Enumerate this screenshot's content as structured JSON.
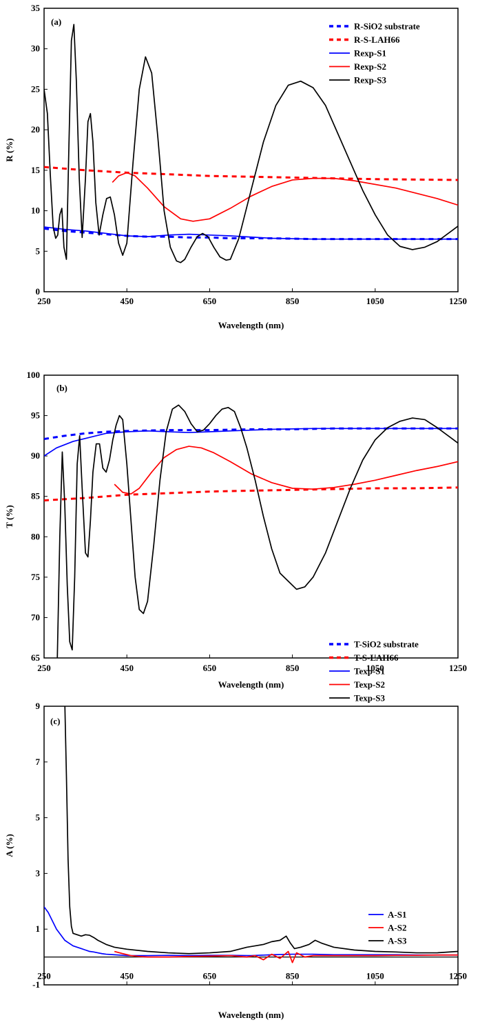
{
  "chart_data": [
    {
      "type": "line",
      "panel_label": "(a)",
      "xlabel": "Wavelength (nm)",
      "ylabel": "R (%)",
      "xlim": [
        250,
        1250
      ],
      "ylim": [
        0,
        35
      ],
      "xticks": [
        250,
        450,
        650,
        850,
        1050,
        1250
      ],
      "yticks": [
        0,
        5,
        10,
        15,
        20,
        25,
        30,
        35
      ],
      "grid": false,
      "legend_position": "top-right",
      "series": [
        {
          "name": "R-SiO2 substrate",
          "color": "#0000ff",
          "dash": true,
          "x": [
            250,
            300,
            350,
            400,
            450,
            500,
            550,
            600,
            650,
            700,
            800,
            900,
            1000,
            1100,
            1250
          ],
          "y": [
            7.8,
            7.5,
            7.3,
            7.1,
            6.9,
            6.8,
            6.8,
            6.7,
            6.7,
            6.6,
            6.6,
            6.5,
            6.5,
            6.5,
            6.5
          ]
        },
        {
          "name": "R-S-LAH66",
          "color": "#ff0000",
          "dash": true,
          "x": [
            250,
            350,
            450,
            550,
            650,
            750,
            850,
            950,
            1050,
            1150,
            1250
          ],
          "y": [
            15.4,
            15.0,
            14.7,
            14.5,
            14.3,
            14.2,
            14.1,
            14.0,
            13.9,
            13.85,
            13.8
          ]
        },
        {
          "name": "Rexp-S1",
          "color": "#0000ff",
          "dash": false,
          "x": [
            250,
            300,
            350,
            400,
            450,
            500,
            550,
            600,
            650,
            700,
            800,
            900,
            1000,
            1100,
            1250
          ],
          "y": [
            8.0,
            7.7,
            7.5,
            7.2,
            6.9,
            6.8,
            7.0,
            7.1,
            7.0,
            6.9,
            6.6,
            6.5,
            6.5,
            6.5,
            6.5
          ]
        },
        {
          "name": "Rexp-S2",
          "color": "#ff0000",
          "dash": false,
          "x": [
            415,
            430,
            450,
            470,
            500,
            540,
            580,
            610,
            650,
            700,
            750,
            800,
            850,
            900,
            950,
            1000,
            1100,
            1200,
            1250
          ],
          "y": [
            13.5,
            14.3,
            14.7,
            14.3,
            12.8,
            10.5,
            9.0,
            8.7,
            9.0,
            10.3,
            11.8,
            13.0,
            13.8,
            14.0,
            14.0,
            13.7,
            12.8,
            11.5,
            10.7
          ]
        },
        {
          "name": "Rexp-S3",
          "color": "#000000",
          "dash": false,
          "x": [
            250,
            258,
            265,
            272,
            278,
            283,
            288,
            293,
            298,
            304,
            310,
            316,
            322,
            328,
            335,
            342,
            350,
            356,
            362,
            368,
            375,
            383,
            392,
            401,
            410,
            420,
            430,
            440,
            450,
            465,
            480,
            495,
            510,
            525,
            540,
            555,
            570,
            580,
            590,
            605,
            620,
            633,
            646,
            660,
            675,
            690,
            700,
            720,
            750,
            780,
            810,
            840,
            870,
            900,
            930,
            960,
            990,
            1020,
            1050,
            1080,
            1110,
            1140,
            1170,
            1200,
            1250
          ],
          "y": [
            25.0,
            22.0,
            14.5,
            8.0,
            6.6,
            7.0,
            9.5,
            10.3,
            5.5,
            4.0,
            18.0,
            31.0,
            33.0,
            26.0,
            14.0,
            6.7,
            14.0,
            21.0,
            22.0,
            18.5,
            11.0,
            7.0,
            9.5,
            11.5,
            11.7,
            9.5,
            6.0,
            4.5,
            6.0,
            16.0,
            25.0,
            29.0,
            27.0,
            19.0,
            10.0,
            5.5,
            3.8,
            3.6,
            4.0,
            5.5,
            6.8,
            7.2,
            6.8,
            5.5,
            4.3,
            3.9,
            4.0,
            6.5,
            12.5,
            18.5,
            23.0,
            25.5,
            26.0,
            25.2,
            23.0,
            19.5,
            16.0,
            12.5,
            9.5,
            7.0,
            5.6,
            5.2,
            5.5,
            6.2,
            8.1
          ]
        }
      ]
    },
    {
      "type": "line",
      "panel_label": "(b)",
      "xlabel": "Wavelength (nm)",
      "ylabel": "T (%)",
      "xlim": [
        250,
        1250
      ],
      "ylim": [
        65,
        100
      ],
      "xticks": [
        250,
        450,
        650,
        850,
        1050,
        1250
      ],
      "yticks": [
        65,
        70,
        75,
        80,
        85,
        90,
        95,
        100
      ],
      "grid": false,
      "legend_position": "bottom-right",
      "series": [
        {
          "name": "T-SiO2 substrate",
          "color": "#0000ff",
          "dash": true,
          "x": [
            250,
            300,
            350,
            400,
            450,
            550,
            650,
            750,
            850,
            950,
            1050,
            1150,
            1250
          ],
          "y": [
            92.1,
            92.5,
            92.8,
            93.0,
            93.1,
            93.2,
            93.2,
            93.3,
            93.3,
            93.4,
            93.4,
            93.4,
            93.4
          ]
        },
        {
          "name": "T-S-LAH66",
          "color": "#ff0000",
          "dash": true,
          "x": [
            250,
            350,
            450,
            550,
            650,
            750,
            850,
            950,
            1050,
            1150,
            1250
          ],
          "y": [
            84.5,
            84.8,
            85.2,
            85.4,
            85.6,
            85.7,
            85.8,
            85.9,
            86.0,
            86.0,
            86.1
          ]
        },
        {
          "name": "Texp-S1",
          "color": "#0000ff",
          "dash": false,
          "x": [
            250,
            280,
            320,
            360,
            400,
            450,
            500,
            550,
            600,
            650,
            700,
            800,
            900,
            1000,
            1100,
            1250
          ],
          "y": [
            90.0,
            91.0,
            91.8,
            92.3,
            92.8,
            93.0,
            93.1,
            93.0,
            92.9,
            93.0,
            93.1,
            93.3,
            93.4,
            93.4,
            93.4,
            93.4
          ]
        },
        {
          "name": "Texp-S2",
          "color": "#ff0000",
          "dash": false,
          "x": [
            420,
            440,
            460,
            480,
            510,
            540,
            570,
            600,
            630,
            660,
            700,
            750,
            800,
            850,
            900,
            950,
            1000,
            1050,
            1100,
            1150,
            1200,
            1250
          ],
          "y": [
            86.5,
            85.5,
            85.3,
            86.0,
            88.0,
            89.8,
            90.8,
            91.2,
            91.0,
            90.4,
            89.3,
            87.8,
            86.7,
            86.0,
            85.9,
            86.1,
            86.5,
            87.0,
            87.6,
            88.2,
            88.7,
            89.3
          ]
        },
        {
          "name": "Texp-S3",
          "color": "#000000",
          "dash": false,
          "x": [
            282,
            288,
            294,
            300,
            306,
            312,
            318,
            324,
            330,
            336,
            342,
            350,
            356,
            362,
            368,
            376,
            384,
            392,
            400,
            408,
            416,
            424,
            432,
            440,
            450,
            460,
            470,
            480,
            490,
            500,
            515,
            530,
            545,
            560,
            575,
            590,
            605,
            620,
            635,
            650,
            665,
            680,
            695,
            710,
            725,
            740,
            760,
            780,
            800,
            820,
            840,
            860,
            880,
            900,
            930,
            960,
            990,
            1020,
            1050,
            1080,
            1110,
            1140,
            1170,
            1200,
            1250
          ],
          "y": [
            65.0,
            80.0,
            90.5,
            84.0,
            74.0,
            67.0,
            66.0,
            75.0,
            89.0,
            92.5,
            86.0,
            78.0,
            77.5,
            82.0,
            88.0,
            91.5,
            91.5,
            88.5,
            88.0,
            89.5,
            92.0,
            93.8,
            95.0,
            94.5,
            89.0,
            82.0,
            75.0,
            71.0,
            70.5,
            72.0,
            79.0,
            87.0,
            93.0,
            95.8,
            96.3,
            95.5,
            94.0,
            93.0,
            93.2,
            94.0,
            95.0,
            95.8,
            96.0,
            95.5,
            93.5,
            91.0,
            87.0,
            82.5,
            78.5,
            75.5,
            74.5,
            73.5,
            73.8,
            75.0,
            78.0,
            82.0,
            86.0,
            89.5,
            92.0,
            93.5,
            94.3,
            94.7,
            94.5,
            93.5,
            91.6
          ]
        }
      ]
    },
    {
      "type": "line",
      "panel_label": "(c)",
      "xlabel": "Wavelength (nm)",
      "ylabel": "A (%)",
      "xlim": [
        250,
        1250
      ],
      "ylim": [
        -1,
        9
      ],
      "xticks": [
        250,
        450,
        650,
        850,
        1050,
        1250
      ],
      "yticks": [
        -1,
        1,
        3,
        5,
        7,
        9
      ],
      "grid": false,
      "legend_position": "bottom-right",
      "series": [
        {
          "name": "A-S1",
          "color": "#0000ff",
          "dash": false,
          "x": [
            250,
            260,
            270,
            280,
            290,
            300,
            310,
            320,
            330,
            340,
            350,
            360,
            370,
            380,
            390,
            400,
            420,
            450,
            500,
            550,
            600,
            650,
            700,
            750,
            800,
            850,
            900,
            950,
            1000,
            1050,
            1100,
            1150,
            1200,
            1250
          ],
          "y": [
            1.8,
            1.6,
            1.3,
            1.0,
            0.8,
            0.6,
            0.5,
            0.4,
            0.35,
            0.3,
            0.25,
            0.2,
            0.18,
            0.15,
            0.12,
            0.1,
            0.08,
            0.05,
            0.05,
            0.06,
            0.05,
            0.06,
            0.06,
            0.05,
            0.08,
            0.1,
            0.1,
            0.08,
            0.08,
            0.08,
            0.08,
            0.07,
            0.07,
            0.07
          ]
        },
        {
          "name": "A-S2",
          "color": "#ff0000",
          "dash": false,
          "x": [
            420,
            440,
            460,
            480,
            500,
            550,
            600,
            650,
            700,
            740,
            760,
            780,
            800,
            820,
            840,
            850,
            860,
            880,
            900,
            950,
            1000,
            1050,
            1100,
            1150,
            1200,
            1250
          ],
          "y": [
            0.2,
            0.12,
            0.05,
            0.02,
            0.0,
            0.0,
            0.02,
            0.03,
            0.05,
            0.0,
            0.05,
            -0.1,
            0.1,
            -0.05,
            0.2,
            -0.2,
            0.15,
            0.0,
            0.05,
            0.05,
            0.05,
            0.05,
            0.06,
            0.06,
            0.07,
            0.07
          ]
        },
        {
          "name": "A-S3",
          "color": "#000000",
          "dash": false,
          "x": [
            300,
            304,
            308,
            312,
            316,
            320,
            330,
            340,
            350,
            360,
            370,
            380,
            400,
            420,
            450,
            500,
            550,
            600,
            650,
            700,
            740,
            760,
            780,
            800,
            820,
            835,
            845,
            855,
            870,
            890,
            905,
            920,
            950,
            1000,
            1050,
            1100,
            1150,
            1200,
            1250
          ],
          "y": [
            9.2,
            6.5,
            3.5,
            1.8,
            1.1,
            0.85,
            0.8,
            0.75,
            0.8,
            0.78,
            0.7,
            0.6,
            0.45,
            0.35,
            0.28,
            0.2,
            0.15,
            0.12,
            0.15,
            0.2,
            0.35,
            0.4,
            0.45,
            0.55,
            0.6,
            0.75,
            0.5,
            0.3,
            0.35,
            0.45,
            0.6,
            0.5,
            0.35,
            0.25,
            0.2,
            0.18,
            0.15,
            0.15,
            0.2
          ]
        }
      ]
    }
  ]
}
